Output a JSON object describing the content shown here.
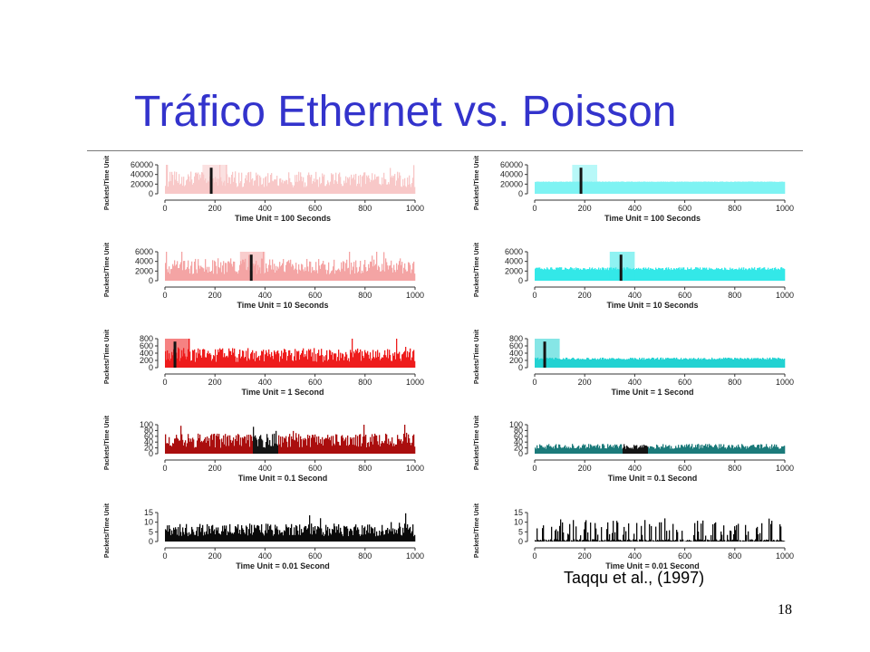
{
  "slide": {
    "title": "Tráfico Ethernet vs. Poisson",
    "citation": "Taqqu et al., (1997)",
    "page_number": "18"
  },
  "colors": {
    "title": "#3333cc",
    "ethernet": [
      "#f8c8c8",
      "#f4a4a4",
      "#ee1c1c",
      "#aa0e0e",
      "#0a0a0a"
    ],
    "poisson": [
      "#7ef3f3",
      "#33e8e8",
      "#22d2d2",
      "#1b7a7a",
      "#0a0a0a"
    ],
    "highlight_dark": "#141414"
  },
  "chart_data": [
    {
      "id": "ethernet-100s",
      "type": "bar",
      "column": "Ethernet",
      "xlabel": "Time Unit = 100 Seconds",
      "ylabel": "Packets/Time Unit",
      "xlim": [
        0,
        1000
      ],
      "ylim": [
        0,
        60000
      ],
      "yticks": [
        0,
        20000,
        40000,
        60000
      ],
      "xticks": [
        0,
        200,
        400,
        600,
        800,
        1000
      ],
      "typical_level": 30000,
      "variability": "high",
      "highlight": [
        150,
        250
      ],
      "marker": 185
    },
    {
      "id": "ethernet-10s",
      "type": "bar",
      "column": "Ethernet",
      "xlabel": "Time Unit = 10 Seconds",
      "ylabel": "Packets/Time Unit",
      "xlim": [
        0,
        1000
      ],
      "ylim": [
        0,
        6000
      ],
      "yticks": [
        0,
        2000,
        4000,
        6000
      ],
      "xticks": [
        0,
        200,
        400,
        600,
        800,
        1000
      ],
      "typical_level": 3000,
      "variability": "high",
      "highlight": [
        300,
        400
      ],
      "marker": 345
    },
    {
      "id": "ethernet-1s",
      "type": "bar",
      "column": "Ethernet",
      "xlabel": "Time Unit = 1 Second",
      "ylabel": "Packets/Time Unit",
      "xlim": [
        0,
        1000
      ],
      "ylim": [
        0,
        800
      ],
      "yticks": [
        0,
        200,
        400,
        600,
        800
      ],
      "xticks": [
        0,
        200,
        400,
        600,
        800,
        1000
      ],
      "typical_level": 350,
      "variability": "high",
      "highlight": [
        0,
        100
      ],
      "marker": 40
    },
    {
      "id": "ethernet-0.1s",
      "type": "bar",
      "column": "Ethernet",
      "xlabel": "Time Unit = 0.1 Second",
      "ylabel": "Packets/Time Unit",
      "xlim": [
        0,
        1000
      ],
      "ylim": [
        0,
        100
      ],
      "yticks": [
        0,
        20,
        40,
        60,
        80,
        100
      ],
      "xticks": [
        0,
        200,
        400,
        600,
        800,
        1000
      ],
      "typical_level": 45,
      "variability": "high",
      "highlight": [
        350,
        450
      ],
      "marker": null
    },
    {
      "id": "ethernet-0.01s",
      "type": "bar",
      "column": "Ethernet",
      "xlabel": "Time Unit = 0.01 Second",
      "ylabel": "Packets/Time Unit",
      "xlim": [
        0,
        1000
      ],
      "ylim": [
        0,
        15
      ],
      "yticks": [
        0,
        5,
        10,
        15
      ],
      "xticks": [
        0,
        200,
        400,
        600,
        800,
        1000
      ],
      "typical_level": 6,
      "variability": "high",
      "highlight": null,
      "marker": null
    },
    {
      "id": "poisson-100s",
      "type": "bar",
      "column": "Poisson",
      "xlabel": "Time Unit = 100 Seconds",
      "ylabel": "Packets/Time Unit",
      "xlim": [
        0,
        1000
      ],
      "ylim": [
        0,
        60000
      ],
      "yticks": [
        0,
        20000,
        40000,
        60000
      ],
      "xticks": [
        0,
        200,
        400,
        600,
        800,
        1000
      ],
      "typical_level": 25000,
      "variability": "very-low",
      "highlight": [
        150,
        250
      ],
      "marker": 185
    },
    {
      "id": "poisson-10s",
      "type": "bar",
      "column": "Poisson",
      "xlabel": "Time Unit = 10 Seconds",
      "ylabel": "Packets/Time Unit",
      "xlim": [
        0,
        1000
      ],
      "ylim": [
        0,
        6000
      ],
      "yticks": [
        0,
        2000,
        4000,
        6000
      ],
      "xticks": [
        0,
        200,
        400,
        600,
        800,
        1000
      ],
      "typical_level": 2500,
      "variability": "low",
      "highlight": [
        300,
        400
      ],
      "marker": 345
    },
    {
      "id": "poisson-1s",
      "type": "bar",
      "column": "Poisson",
      "xlabel": "Time Unit = 1 Second",
      "ylabel": "Packets/Time Unit",
      "xlim": [
        0,
        1000
      ],
      "ylim": [
        0,
        800
      ],
      "yticks": [
        0,
        200,
        400,
        600,
        800
      ],
      "xticks": [
        0,
        200,
        400,
        600,
        800,
        1000
      ],
      "typical_level": 250,
      "variability": "low",
      "highlight": [
        0,
        100
      ],
      "marker": 40
    },
    {
      "id": "poisson-0.1s",
      "type": "bar",
      "column": "Poisson",
      "xlabel": "Time Unit = 0.1 Second",
      "ylabel": "Packets/Time Unit",
      "xlim": [
        0,
        1000
      ],
      "ylim": [
        0,
        100
      ],
      "yticks": [
        0,
        20,
        40,
        60,
        80,
        100
      ],
      "xticks": [
        0,
        200,
        400,
        600,
        800,
        1000
      ],
      "typical_level": 25,
      "variability": "moderate",
      "highlight": [
        350,
        450
      ],
      "marker": null
    },
    {
      "id": "poisson-0.01s",
      "type": "bar",
      "column": "Poisson",
      "xlabel": "Time Unit = 0.01 Second",
      "ylabel": "Packets/Time Unit",
      "xlim": [
        0,
        1000
      ],
      "ylim": [
        0,
        15
      ],
      "yticks": [
        0,
        5,
        10,
        15
      ],
      "xticks": [
        0,
        200,
        400,
        600,
        800,
        1000
      ],
      "typical_level": 3,
      "variability": "high",
      "highlight": null,
      "marker": null
    }
  ]
}
